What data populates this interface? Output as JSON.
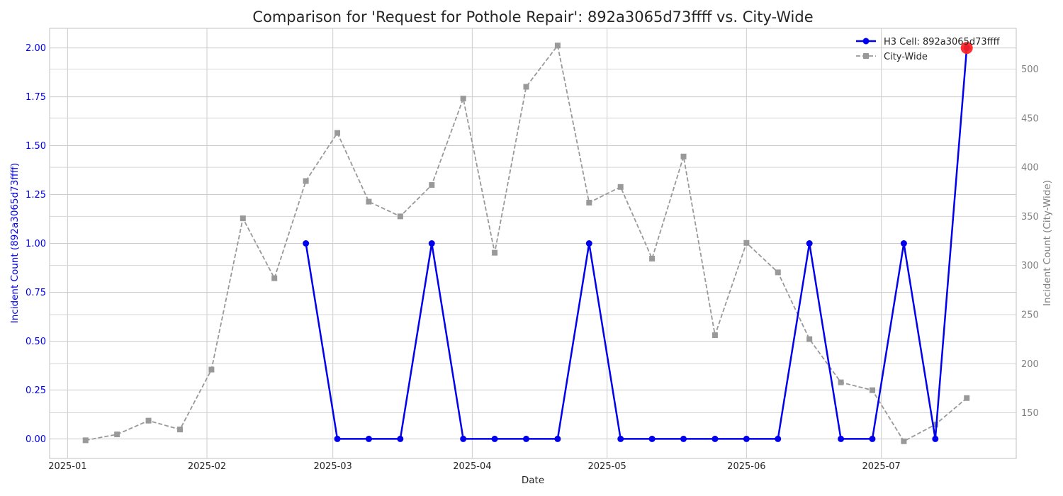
{
  "chart_data": {
    "type": "line",
    "title": "Comparison for 'Request for Pothole Repair': 892a3065d73ffff vs. City-Wide",
    "xlabel": "Date",
    "ylabel_left": "Incident Count (892a3065d73ffff)",
    "ylabel_right": "Incident Count (City-Wide)",
    "ylim_left": [
      -0.1,
      2.1
    ],
    "ylim_right": [
      103.5,
      541.5
    ],
    "xlim": [
      "2024-12-28",
      "2025-07-31"
    ],
    "x_ticks": [
      "2025-01-01",
      "2025-02-01",
      "2025-03-01",
      "2025-04-01",
      "2025-05-01",
      "2025-06-01",
      "2025-07-01"
    ],
    "x_tick_labels": [
      "2025-01",
      "2025-02",
      "2025-03",
      "2025-04",
      "2025-05",
      "2025-06",
      "2025-07"
    ],
    "y_ticks_left": [
      0.0,
      0.25,
      0.5,
      0.75,
      1.0,
      1.25,
      1.5,
      1.75,
      2.0
    ],
    "y_tick_labels_left": [
      "0.00",
      "0.25",
      "0.50",
      "0.75",
      "1.00",
      "1.25",
      "1.50",
      "1.75",
      "2.00"
    ],
    "y_ticks_right": [
      150,
      200,
      250,
      300,
      350,
      400,
      450,
      500
    ],
    "y_tick_labels_right": [
      "150",
      "200",
      "250",
      "300",
      "350",
      "400",
      "450",
      "500"
    ],
    "grid": true,
    "legend_position": "top-right",
    "series": [
      {
        "name": "H3 Cell: 892a3065d73ffff",
        "axis": "left",
        "color": "#0000ee",
        "style": "solid",
        "marker": "circle",
        "x": [
          "2025-02-23",
          "2025-03-02",
          "2025-03-09",
          "2025-03-16",
          "2025-03-23",
          "2025-03-30",
          "2025-04-06",
          "2025-04-13",
          "2025-04-20",
          "2025-04-27",
          "2025-05-04",
          "2025-05-11",
          "2025-05-18",
          "2025-05-25",
          "2025-06-01",
          "2025-06-08",
          "2025-06-15",
          "2025-06-22",
          "2025-06-29",
          "2025-07-06",
          "2025-07-13",
          "2025-07-20"
        ],
        "values": [
          1,
          0,
          0,
          0,
          1,
          0,
          0,
          0,
          0,
          1,
          0,
          0,
          0,
          0,
          0,
          0,
          1,
          0,
          0,
          1,
          0,
          2
        ]
      },
      {
        "name": "City-Wide",
        "axis": "right",
        "color": "#999999",
        "style": "dashed",
        "marker": "square",
        "x": [
          "2025-01-05",
          "2025-01-12",
          "2025-01-19",
          "2025-01-26",
          "2025-02-02",
          "2025-02-09",
          "2025-02-16",
          "2025-02-23",
          "2025-03-02",
          "2025-03-09",
          "2025-03-16",
          "2025-03-23",
          "2025-03-30",
          "2025-04-06",
          "2025-04-13",
          "2025-04-20",
          "2025-04-27",
          "2025-05-04",
          "2025-05-11",
          "2025-05-18",
          "2025-05-25",
          "2025-06-01",
          "2025-06-08",
          "2025-06-15",
          "2025-06-22",
          "2025-06-29",
          "2025-07-06",
          "2025-07-13",
          "2025-07-20"
        ],
        "values": [
          122,
          128,
          142,
          133,
          194,
          348,
          287,
          386,
          435,
          365,
          350,
          382,
          470,
          313,
          482,
          524,
          364,
          380,
          307,
          411,
          229,
          323,
          293,
          225,
          181,
          173,
          121,
          138,
          165
        ]
      }
    ],
    "highlight": {
      "series": 0,
      "x": "2025-07-20",
      "value": 2,
      "color": "#ff2020"
    }
  }
}
